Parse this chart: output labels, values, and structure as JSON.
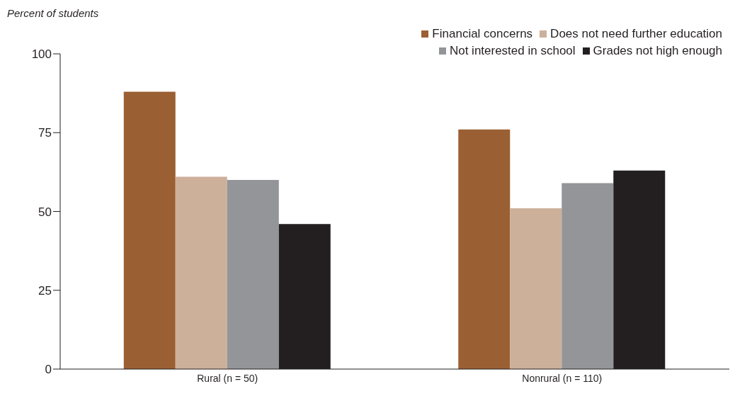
{
  "chart_data": {
    "type": "bar",
    "ylabel": "Percent of students",
    "categories": [
      "Rural (n = 50)",
      "Nonrural (n = 110)"
    ],
    "series": [
      {
        "name": "Financial concerns",
        "color": "#9a5f32",
        "values": [
          88,
          76
        ]
      },
      {
        "name": "Does not need further education",
        "color": "#cdb09a",
        "values": [
          61,
          51
        ]
      },
      {
        "name": "Not interested in school",
        "color": "#939598",
        "values": [
          60,
          59
        ]
      },
      {
        "name": "Grades not high enough",
        "color": "#231f20",
        "values": [
          46,
          63
        ]
      }
    ],
    "ylim": [
      0,
      100
    ],
    "yticks": [
      0,
      25,
      50,
      75,
      100
    ],
    "grid": false,
    "legend": "top right"
  }
}
